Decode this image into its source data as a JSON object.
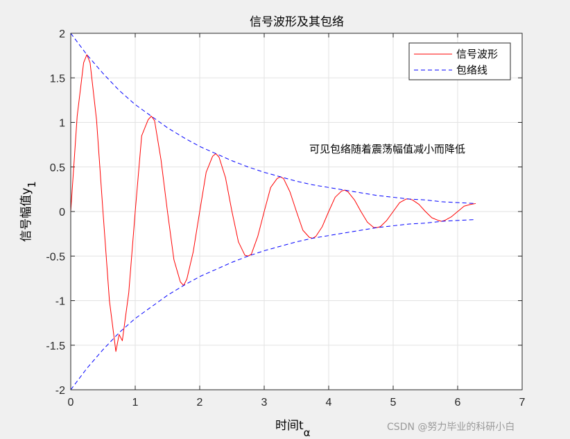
{
  "chart_data": {
    "type": "line",
    "title": "信号波形及其包络",
    "xlabel": "时间t",
    "xlabel_sub": "α",
    "ylabel": "信号幅值y",
    "ylabel_sub": "1",
    "xlim": [
      0,
      7
    ],
    "ylim": [
      -2,
      2
    ],
    "xticks": [
      0,
      1,
      2,
      3,
      4,
      5,
      6,
      7
    ],
    "yticks": [
      -2,
      -1.5,
      -1,
      -0.5,
      0,
      0.5,
      1,
      1.5,
      2
    ],
    "xtick_labels": [
      "0",
      "1",
      "2",
      "3",
      "4",
      "5",
      "6",
      "7"
    ],
    "ytick_labels": [
      "-2",
      "-1.5",
      "-1",
      "-0.5",
      "0",
      "0.5",
      "1",
      "1.5",
      "2"
    ],
    "grid": true,
    "legend_position": "top-right",
    "series": [
      {
        "name": "信号波形",
        "color": "#ff0000",
        "style": "solid",
        "x": [
          0,
          0.1,
          0.2,
          0.25,
          0.3,
          0.4,
          0.5,
          0.6,
          0.7,
          0.75,
          0.8,
          0.9,
          1.0,
          1.1,
          1.2,
          1.25,
          1.3,
          1.4,
          1.5,
          1.6,
          1.7,
          1.75,
          1.8,
          1.9,
          2.0,
          2.1,
          2.2,
          2.25,
          2.3,
          2.4,
          2.5,
          2.6,
          2.7,
          2.75,
          2.8,
          2.9,
          3.0,
          3.1,
          3.2,
          3.25,
          3.3,
          3.4,
          3.5,
          3.6,
          3.7,
          3.75,
          3.8,
          3.9,
          4.0,
          4.1,
          4.2,
          4.25,
          4.3,
          4.4,
          4.5,
          4.6,
          4.7,
          4.75,
          4.8,
          4.9,
          5.0,
          5.1,
          5.2,
          5.25,
          5.3,
          5.4,
          5.5,
          5.6,
          5.7,
          5.75,
          5.8,
          5.9,
          6.0,
          6.1,
          6.2,
          6.28
        ],
        "y": [
          0,
          1.07,
          1.67,
          1.76,
          1.67,
          1.03,
          0,
          -1.0,
          -1.57,
          -1.38,
          -1.45,
          -0.91,
          0,
          0.85,
          1.03,
          1.07,
          1.02,
          0.58,
          0,
          -0.54,
          -0.79,
          -0.83,
          -0.76,
          -0.45,
          0,
          0.44,
          0.62,
          0.65,
          0.61,
          0.38,
          0,
          -0.34,
          -0.49,
          -0.5,
          -0.48,
          -0.28,
          0,
          0.27,
          0.37,
          0.39,
          0.37,
          0.22,
          0,
          -0.21,
          -0.29,
          -0.3,
          -0.28,
          -0.17,
          0,
          0.16,
          0.23,
          0.24,
          0.22,
          0.13,
          0,
          -0.12,
          -0.18,
          -0.18,
          -0.17,
          -0.1,
          0,
          0.1,
          0.14,
          0.14,
          0.13,
          0.08,
          0,
          -0.07,
          -0.1,
          -0.11,
          -0.1,
          -0.06,
          0,
          0.06,
          0.08,
          0.09
        ]
      },
      {
        "name": "包络线",
        "color": "#0000ff",
        "style": "dashed",
        "x": [
          0,
          0.25,
          0.5,
          0.75,
          1.0,
          1.25,
          1.5,
          1.75,
          2.0,
          2.25,
          2.5,
          2.75,
          3.0,
          3.25,
          3.5,
          3.75,
          4.0,
          4.25,
          4.5,
          4.75,
          5.0,
          5.25,
          5.5,
          5.75,
          6.0,
          6.28
        ],
        "y": [
          2,
          1.76,
          1.55,
          1.36,
          1.2,
          1.07,
          0.94,
          0.83,
          0.73,
          0.65,
          0.57,
          0.5,
          0.44,
          0.39,
          0.34,
          0.3,
          0.27,
          0.24,
          0.21,
          0.18,
          0.16,
          0.14,
          0.13,
          0.11,
          0.1,
          0.09
        ]
      }
    ],
    "annotation": {
      "text": "可见包络随着震荡幅值减小而降低",
      "x": 3.7,
      "y": 0.67
    }
  },
  "watermark": "CSDN @努力毕业的科研小白"
}
